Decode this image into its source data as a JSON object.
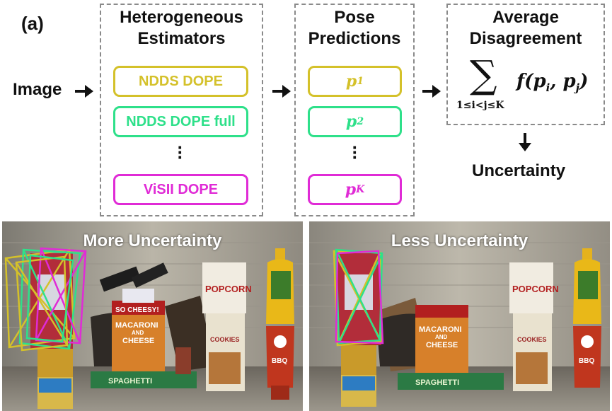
{
  "panel_label": "(a)",
  "input_label": "Image",
  "estimators": {
    "title": "Heterogeneous\nEstimators",
    "items": [
      {
        "label": "NDDS DOPE",
        "color": "#d4c12a"
      },
      {
        "label": "NDDS DOPE full",
        "color": "#2ee08a"
      },
      {
        "label": "ViSII DOPE",
        "color": "#e02bd6"
      }
    ]
  },
  "predictions": {
    "title": "Pose\nPredictions",
    "items": [
      {
        "base": "p",
        "sub": "1",
        "color": "#d4c12a"
      },
      {
        "base": "p",
        "sub": "2",
        "color": "#2ee08a"
      },
      {
        "base": "p",
        "sub": "K",
        "color": "#e02bd6"
      }
    ]
  },
  "aggregation": {
    "title": "Average\nDisagreement",
    "sum_symbol": "∑",
    "sum_range": "1≤i<j≤K",
    "expression": "f(p",
    "sub_i": "i",
    "comma": ", p",
    "sub_j": "j",
    "close": ")"
  },
  "output_label": "Uncertainty",
  "photos": {
    "left_title": "More Uncertainty",
    "right_title": "Less Uncertainty",
    "product_text": {
      "cheesy": "SO CHEESY!",
      "macaroni": "MACARONI",
      "and": "AND",
      "cheese": "CHEESE",
      "popcorn": "POPCORN",
      "cookies": "COOKIES",
      "spaghetti": "SPAGHETTI",
      "bbq": "BBQ"
    }
  }
}
